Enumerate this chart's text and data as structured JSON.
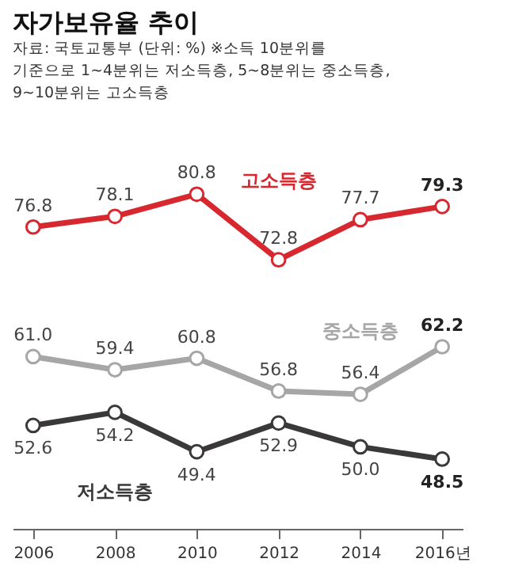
{
  "chart_data": {
    "type": "line",
    "title": "자가보유율 추이",
    "subtitle": "자료: 국토교통부 (단위: %) ※소득 10분위를 기준으로 1~4분위는 저소득층, 5~8분위는 중소득층, 9~10분위는 고소득층",
    "categories": [
      "2006",
      "2008",
      "2010",
      "2012",
      "2014",
      "2016년"
    ],
    "series": [
      {
        "name": "고소득층",
        "color": "#d7282f",
        "values": [
          76.8,
          78.1,
          80.8,
          72.8,
          77.7,
          79.3
        ],
        "value_labels": [
          "76.8",
          "78.1",
          "80.8",
          "72.8",
          "77.7",
          "79.3"
        ]
      },
      {
        "name": "중소득층",
        "color": "#a6a6a6",
        "values": [
          61.0,
          59.4,
          60.8,
          56.8,
          56.4,
          62.2
        ],
        "value_labels": [
          "61.0",
          "59.4",
          "60.8",
          "56.8",
          "56.4",
          "62.2"
        ]
      },
      {
        "name": "저소득층",
        "color": "#3a3838",
        "values": [
          52.6,
          54.2,
          49.4,
          52.9,
          50.0,
          48.5
        ],
        "value_labels": [
          "52.6",
          "54.2",
          "49.4",
          "52.9",
          "50.0",
          "48.5"
        ]
      }
    ],
    "marker": "circle",
    "line_style": "solid"
  }
}
